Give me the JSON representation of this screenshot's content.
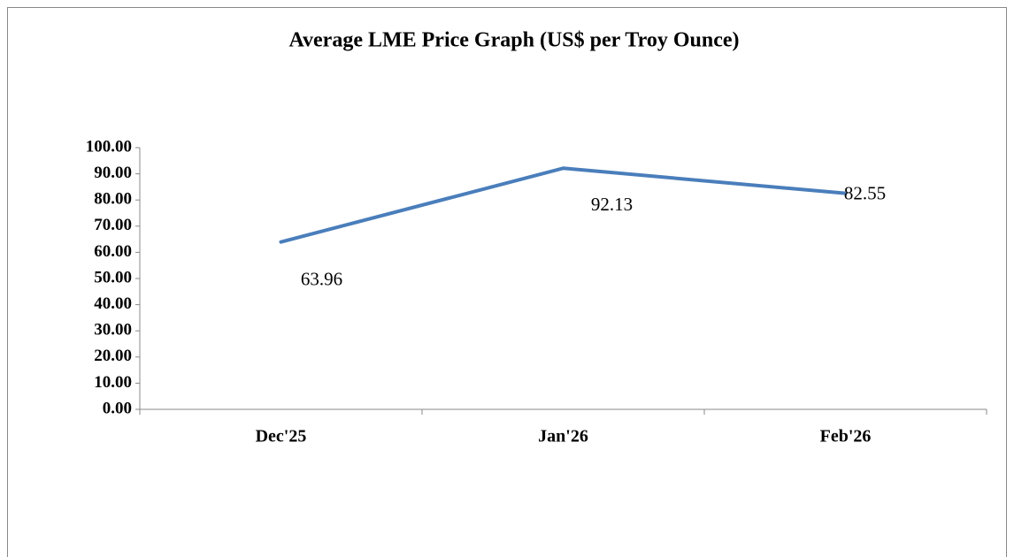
{
  "chart_data": {
    "type": "line",
    "title": "Average LME Price Graph (US$ per Troy Ounce)",
    "categories": [
      "Dec'25",
      "Jan'26",
      "Feb'26"
    ],
    "series": [
      {
        "name": "Average LME Price",
        "color": "#4a7ebb",
        "values": [
          63.96,
          92.13,
          82.55
        ]
      }
    ],
    "ylim": [
      0,
      100
    ],
    "yticks": [
      {
        "value": 0,
        "label": "0.00"
      },
      {
        "value": 10,
        "label": "10.00"
      },
      {
        "value": 20,
        "label": "20.00"
      },
      {
        "value": 30,
        "label": "30.00"
      },
      {
        "value": 40,
        "label": "40.00"
      },
      {
        "value": 50,
        "label": "50.00"
      },
      {
        "value": 60,
        "label": "60.00"
      },
      {
        "value": 70,
        "label": "70.00"
      },
      {
        "value": 80,
        "label": "80.00"
      },
      {
        "value": 90,
        "label": "90.00"
      },
      {
        "value": 100,
        "label": "100.00"
      }
    ],
    "grid": false
  }
}
